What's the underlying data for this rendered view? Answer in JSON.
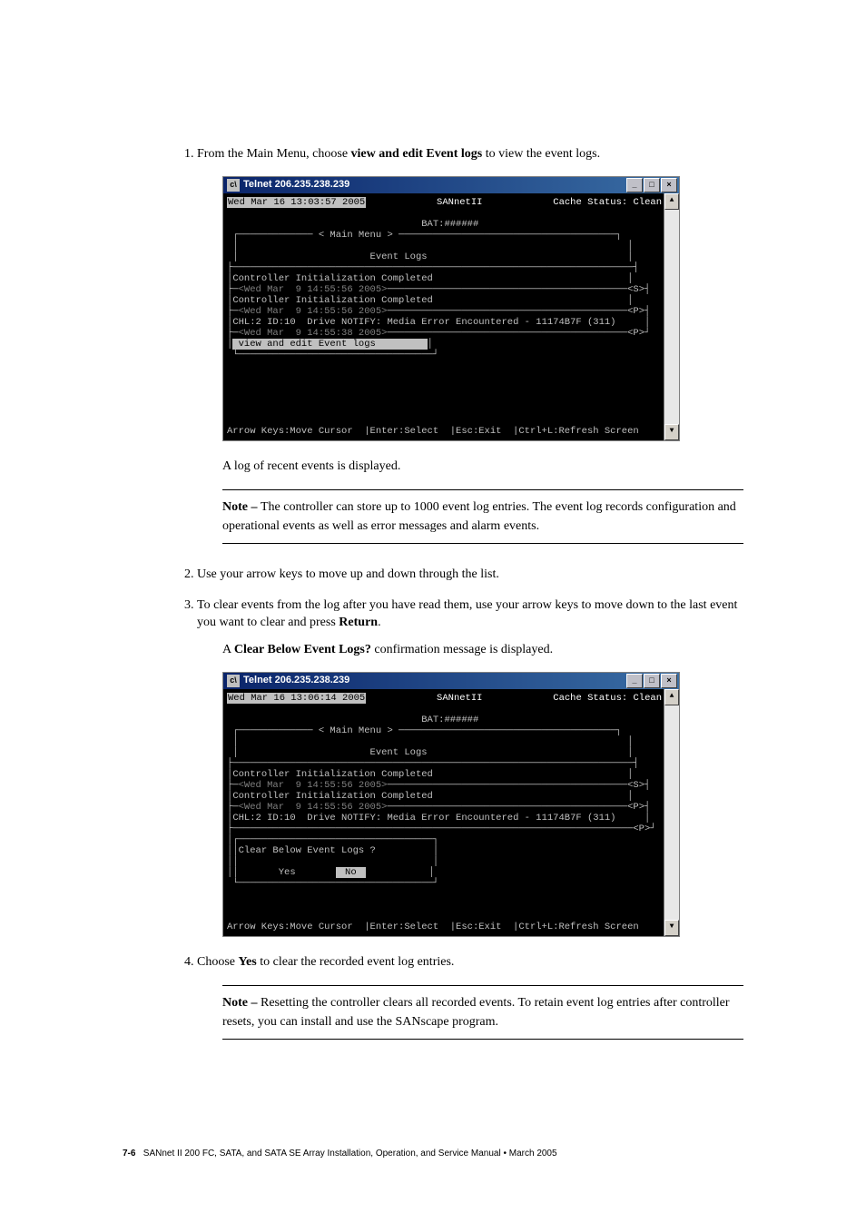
{
  "steps": {
    "s1_pre": "From the Main Menu, choose ",
    "s1_bold": "view and edit Event logs",
    "s1_post": " to view the event logs.",
    "s1_after": "A log of recent events is displayed.",
    "note1_label": "Note – ",
    "note1_text": "The controller can store up to 1000 event log entries. The event log records configuration and operational events as well as error messages and alarm events.",
    "s2": "Use your arrow keys to move up and down through the list.",
    "s3_a": "To clear events from the log after you have read them, use your arrow keys to move down to the last event you want to clear and press ",
    "s3_b": "Return",
    "s3_c": ".",
    "s3_after_a": "A ",
    "s3_after_b": "Clear Below Event Logs?",
    "s3_after_c": " confirmation message is displayed.",
    "s4_a": "Choose ",
    "s4_b": "Yes",
    "s4_c": " to clear the recorded event log entries.",
    "note2_label": "Note – ",
    "note2_text": "Resetting the controller clears all recorded events. To retain event log entries after controller resets, you can install and use the SANscape program."
  },
  "term1": {
    "title": "Telnet 206.235.238.239",
    "datetime": "Wed Mar 16 13:03:57 2005",
    "product": "SANnetII",
    "cache": "Cache Status: Clean",
    "bat": "BAT:######",
    "main_menu": "< Main Menu >",
    "panel_title": "Event Logs",
    "e1": "Controller Initialization Completed",
    "ts1": "<Wed Mar  9 14:55:56 2005>",
    "m1": "<S>",
    "e2": "Controller Initialization Completed",
    "ts2": "<Wed Mar  9 14:55:56 2005>",
    "m2": "<P>",
    "e3": "CHL:2 ID:10  Drive NOTIFY: Media Error Encountered - 11174B7F (311)",
    "ts3": "<Wed Mar  9 14:55:38 2005>",
    "m3": "<P>",
    "selected": " view and edit Event logs         ",
    "footer": "Arrow Keys:Move Cursor  |Enter:Select  |Esc:Exit  |Ctrl+L:Refresh Screen"
  },
  "term2": {
    "title": "Telnet 206.235.238.239",
    "datetime": "Wed Mar 16 13:06:14 2005",
    "product": "SANnetII",
    "cache": "Cache Status: Clean",
    "bat": "BAT:######",
    "main_menu": "< Main Menu >",
    "panel_title": "Event Logs",
    "e1": "Controller Initialization Completed",
    "ts1": "<Wed Mar  9 14:55:56 2005>",
    "m1": "<S>",
    "e2": "Controller Initialization Completed",
    "ts2": "<Wed Mar  9 14:55:56 2005>",
    "m2": "<P>",
    "e3": "CHL:2 ID:10  Drive NOTIFY: Media Error Encountered - 11174B7F (311)",
    "m3": "<P>",
    "dialog_q": "Clear Below Event Logs ?",
    "dialog_yes": "Yes",
    "dialog_no": " No ",
    "footer": "Arrow Keys:Move Cursor  |Enter:Select  |Esc:Exit  |Ctrl+L:Refresh Screen"
  },
  "footer": {
    "pagenum": "7-6",
    "text": "SANnet II 200 FC, SATA, and SATA SE Array Installation, Operation, and Service Manual  •  March 2005"
  },
  "colors": {
    "term_bg": "#000000",
    "term_fg": "#c0c0c0",
    "titlebar_from": "#0a246a",
    "titlebar_to": "#3a6ea5",
    "win_chrome": "#d4d0c8"
  }
}
